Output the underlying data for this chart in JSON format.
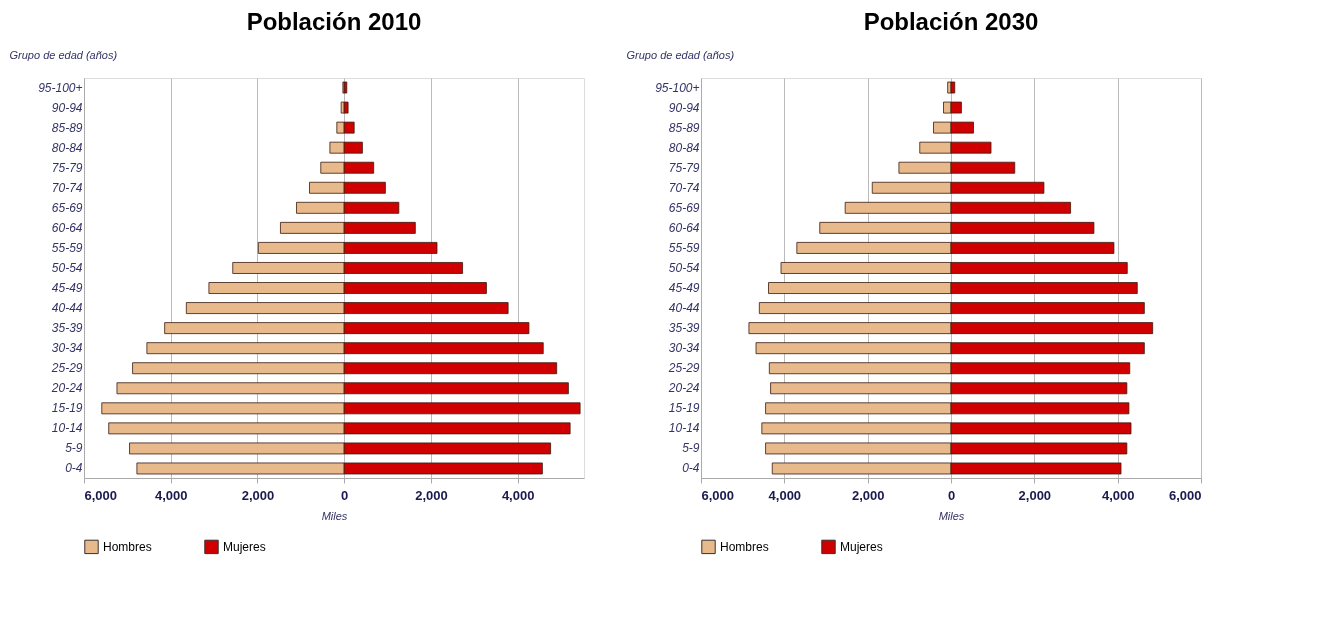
{
  "chart_data": [
    {
      "type": "bar",
      "orientation": "horizontal",
      "stacked": true,
      "title": "Población 2010",
      "xlabel": "Miles",
      "ylabel": "Grupo de edad (años)",
      "categories": [
        "95-100+",
        "90-94",
        "85-89",
        "80-84",
        "75-79",
        "70-74",
        "65-69",
        "60-64",
        "55-59",
        "50-54",
        "45-49",
        "40-44",
        "35-39",
        "30-34",
        "25-29",
        "20-24",
        "15-19",
        "10-14",
        "5-9",
        "0-4"
      ],
      "series": [
        {
          "name": "Hombres",
          "color": "#e8b98a",
          "values": [
            -30,
            -70,
            -170,
            -330,
            -540,
            -800,
            -1100,
            -1470,
            -1980,
            -2570,
            -3120,
            -3640,
            -4140,
            -4550,
            -4880,
            -5240,
            -5590,
            -5430,
            -4950,
            -4780
          ]
        },
        {
          "name": "Mujeres",
          "color": "#d00000",
          "values": [
            60,
            90,
            230,
            420,
            680,
            950,
            1260,
            1640,
            2140,
            2730,
            3280,
            3780,
            4260,
            4590,
            4900,
            5170,
            5440,
            5210,
            4760,
            4570
          ]
        }
      ],
      "xlim": [
        -6000,
        5530
      ],
      "xticks": [
        {
          "value": -6000,
          "label": "6,000"
        },
        {
          "value": -4000,
          "label": "4,000"
        },
        {
          "value": -2000,
          "label": "2,000"
        },
        0,
        {
          "value": 2000,
          "label": "2,000"
        },
        {
          "value": 4000,
          "label": "4,000"
        }
      ],
      "grid": "x",
      "legend": "bottom"
    },
    {
      "type": "bar",
      "orientation": "horizontal",
      "stacked": true,
      "title": "Población 2030",
      "xlabel": "Miles",
      "ylabel": "Grupo de edad (años)",
      "categories": [
        "95-100+",
        "90-94",
        "85-89",
        "80-84",
        "75-79",
        "70-74",
        "65-69",
        "60-64",
        "55-59",
        "50-54",
        "45-49",
        "40-44",
        "35-39",
        "30-34",
        "25-29",
        "20-24",
        "15-19",
        "10-14",
        "5-9",
        "0-4"
      ],
      "series": [
        {
          "name": "Hombres",
          "color": "#e8b98a",
          "values": [
            -80,
            -180,
            -420,
            -750,
            -1250,
            -1890,
            -2540,
            -3150,
            -3700,
            -4080,
            -4380,
            -4600,
            -4850,
            -4680,
            -4360,
            -4330,
            -4450,
            -4540,
            -4450,
            -4290
          ]
        },
        {
          "name": "Mujeres",
          "color": "#d00000",
          "values": [
            90,
            250,
            540,
            960,
            1530,
            2230,
            2870,
            3430,
            3910,
            4230,
            4470,
            4640,
            4840,
            4640,
            4290,
            4220,
            4270,
            4320,
            4220,
            4080
          ]
        }
      ],
      "xlim": [
        -6000,
        6000
      ],
      "xticks": [
        {
          "value": -6000,
          "label": "6,000"
        },
        {
          "value": -4000,
          "label": "4,000"
        },
        {
          "value": -2000,
          "label": "2,000"
        },
        0,
        {
          "value": 2000,
          "label": "2,000"
        },
        {
          "value": 4000,
          "label": "4,000"
        },
        {
          "value": 6000,
          "label": "6,000"
        }
      ],
      "grid": "x",
      "legend": "bottom"
    }
  ]
}
